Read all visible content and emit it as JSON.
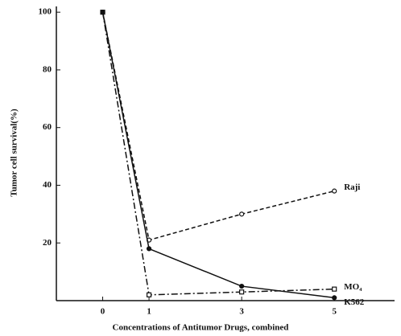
{
  "chart_data": {
    "type": "line",
    "xlabel": "Concentrations of Antitumor Drugs, combined",
    "ylabel": "Tumor cell survival(%)",
    "xlim": [
      -1,
      6.3
    ],
    "xticks": [
      0,
      1,
      3,
      5
    ],
    "ylim": [
      0,
      102
    ],
    "yticks": [
      20,
      40,
      60,
      80,
      100
    ],
    "grid": false,
    "series": [
      {
        "name": "Raji",
        "color": "#111111",
        "style": "dashed",
        "marker": "circle",
        "x": [
          0,
          1,
          3,
          5
        ],
        "values": [
          100,
          21,
          30,
          38
        ]
      },
      {
        "name": "MO₄",
        "color": "#111111",
        "style": "dashdot",
        "marker": "square",
        "x": [
          0,
          1,
          3,
          5
        ],
        "values": [
          100,
          2,
          3,
          4
        ]
      },
      {
        "name": "K562",
        "color": "#111111",
        "style": "solid",
        "marker": "dot",
        "x": [
          0,
          1,
          3,
          5
        ],
        "values": [
          100,
          18,
          5,
          1
        ]
      }
    ]
  }
}
